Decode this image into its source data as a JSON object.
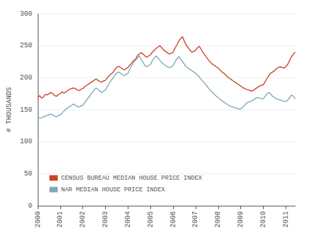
{
  "chart_data": {
    "type": "line",
    "ylabel": "# THOUSANDS",
    "categories": [
      "2000",
      null,
      null,
      null,
      null,
      null,
      null,
      null,
      null,
      null,
      null,
      null,
      "2001",
      null,
      null,
      null,
      null,
      null,
      null,
      null,
      null,
      null,
      null,
      null,
      "2002",
      null,
      null,
      null,
      null,
      null,
      null,
      null,
      null,
      null,
      null,
      null,
      "2003",
      null,
      null,
      null,
      null,
      null,
      null,
      null,
      null,
      null,
      null,
      null,
      "2004",
      null,
      null,
      null,
      null,
      null,
      null,
      null,
      null,
      null,
      null,
      null,
      "2005",
      null,
      null,
      null,
      null,
      null,
      null,
      null,
      null,
      null,
      null,
      null,
      "2006",
      null,
      null,
      null,
      null,
      null,
      null,
      null,
      null,
      null,
      null,
      null,
      "2007",
      null,
      null,
      null,
      null,
      null,
      null,
      null,
      null,
      null,
      null,
      null,
      "2008",
      null,
      null,
      null,
      null,
      null,
      null,
      null,
      null,
      null,
      null,
      null,
      "2009",
      null,
      null,
      null,
      null,
      null,
      null,
      null,
      null,
      null,
      null,
      null,
      "2010",
      null,
      null,
      null,
      null,
      null,
      null,
      null,
      null,
      null,
      null,
      null,
      "2011",
      null,
      null,
      null,
      null,
      null
    ],
    "series": [
      {
        "name": "CENSUS BUREAU MEDIAN HOUSE PRICE INDEX",
        "color": "#cc4125",
        "values": [
          169,
          172,
          168,
          170,
          174,
          173,
          175,
          177,
          175,
          172,
          171,
          174,
          175,
          178,
          176,
          178,
          180,
          182,
          183,
          184,
          183,
          181,
          180,
          182,
          183,
          186,
          188,
          190,
          192,
          194,
          196,
          198,
          196,
          194,
          193,
          195,
          196,
          200,
          203,
          206,
          208,
          213,
          216,
          218,
          216,
          214,
          212,
          214,
          216,
          220,
          223,
          227,
          229,
          234,
          237,
          239,
          237,
          234,
          232,
          234,
          236,
          240,
          243,
          246,
          248,
          250,
          247,
          243,
          241,
          239,
          237,
          238,
          240,
          246,
          251,
          257,
          261,
          264,
          257,
          251,
          247,
          243,
          240,
          241,
          243,
          247,
          249,
          244,
          239,
          235,
          231,
          227,
          224,
          221,
          219,
          217,
          215,
          212,
          209,
          207,
          204,
          201,
          199,
          197,
          195,
          193,
          191,
          189,
          187,
          185,
          183,
          182,
          181,
          180,
          179,
          181,
          183,
          185,
          187,
          188,
          189,
          194,
          199,
          204,
          207,
          209,
          211,
          214,
          216,
          217,
          216,
          215,
          217,
          221,
          227,
          233,
          237,
          240
        ]
      },
      {
        "name": "NAR MEDIAN HOUSE PRICE INDEX",
        "color": "#7eaab8",
        "values": [
          136,
          137,
          137,
          139,
          140,
          141,
          142,
          143,
          142,
          140,
          139,
          141,
          142,
          145,
          148,
          151,
          153,
          155,
          157,
          159,
          157,
          155,
          154,
          156,
          157,
          161,
          165,
          169,
          173,
          177,
          181,
          184,
          182,
          179,
          177,
          179,
          181,
          186,
          191,
          196,
          199,
          204,
          207,
          209,
          207,
          205,
          203,
          205,
          207,
          214,
          219,
          224,
          227,
          231,
          234,
          229,
          224,
          219,
          217,
          219,
          221,
          227,
          231,
          234,
          231,
          227,
          224,
          221,
          219,
          217,
          216,
          217,
          219,
          225,
          229,
          233,
          229,
          225,
          221,
          217,
          215,
          213,
          211,
          209,
          207,
          204,
          201,
          197,
          194,
          191,
          187,
          183,
          180,
          177,
          174,
          171,
          169,
          166,
          164,
          162,
          160,
          158,
          156,
          155,
          154,
          153,
          152,
          151,
          151,
          154,
          157,
          160,
          162,
          163,
          164,
          166,
          168,
          169,
          168,
          167,
          167,
          171,
          175,
          177,
          174,
          171,
          169,
          167,
          166,
          165,
          164,
          163,
          163,
          165,
          169,
          173,
          171,
          167
        ]
      }
    ],
    "ylim": [
      0,
      300
    ],
    "yticks": [
      0,
      50,
      100,
      150,
      200,
      250,
      300
    ],
    "grid": true,
    "legend": "lower left"
  }
}
